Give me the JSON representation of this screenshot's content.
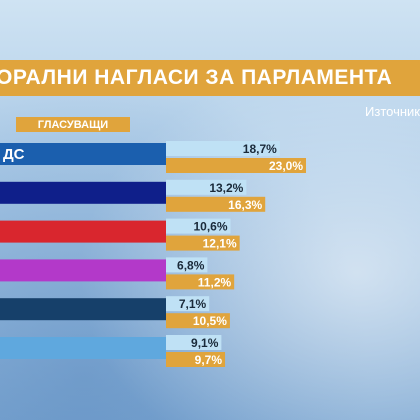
{
  "header": {
    "title": "ОРАЛНИ НАГЛАСИ ЗА ПАРЛАМЕНТА",
    "source": "Източник",
    "legend_voters": "ГЛАСУВАЩИ"
  },
  "chart_data": {
    "type": "bar",
    "orientation": "horizontal",
    "categories": [
      "ДС",
      "",
      "",
      "",
      "",
      ""
    ],
    "series": [
      {
        "values": [
          18.7,
          13.2,
          10.6,
          6.8,
          7.1,
          9.1
        ]
      },
      {
        "name": "ГЛАСУВАЩИ",
        "values": [
          23.0,
          16.3,
          12.1,
          11.2,
          10.5,
          9.7
        ]
      }
    ],
    "labels_a": [
      "18,7%",
      "13,2%",
      "10,6%",
      "6,8%",
      "7,1%",
      "9,1%"
    ],
    "labels_b": [
      "23,0%",
      "16,3%",
      "12,1%",
      "11,2%",
      "10,5%",
      "9,7%"
    ],
    "party_colors": [
      "#1b5fae",
      "#0f1f8a",
      "#d9262e",
      "#b339c9",
      "#16406a",
      "#5fa8de"
    ],
    "series_colors": [
      "#bfe1f5",
      "#e0a43c"
    ]
  }
}
